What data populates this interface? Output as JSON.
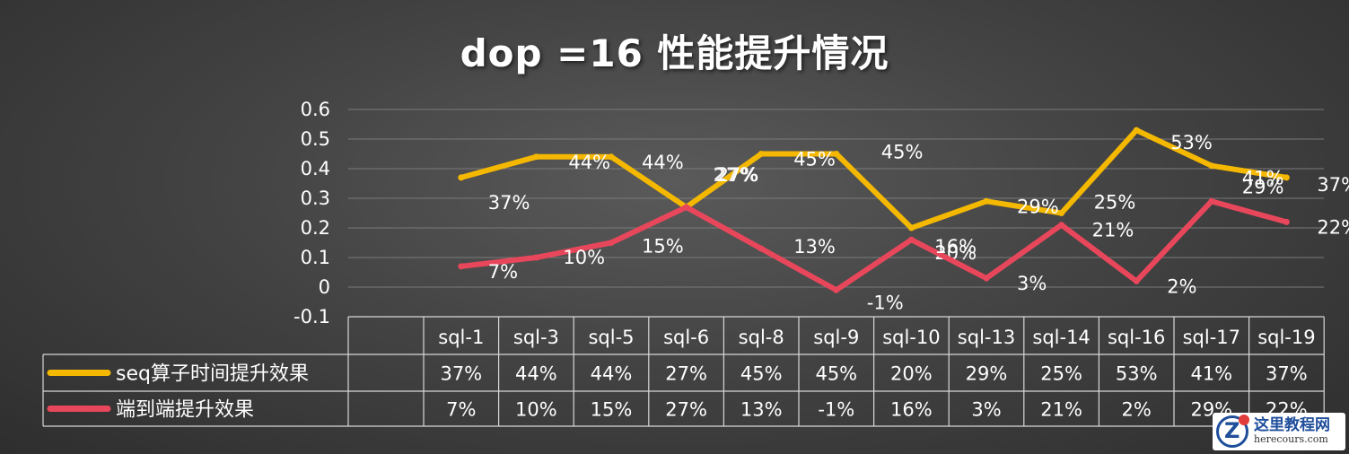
{
  "chart_data": {
    "type": "line",
    "title": "dop =16 性能提升情况",
    "categories": [
      "sql-1",
      "sql-3",
      "sql-5",
      "sql-6",
      "sql-8",
      "sql-9",
      "sql-10",
      "sql-13",
      "sql-14",
      "sql-16",
      "sql-17",
      "sql-19"
    ],
    "series": [
      {
        "name": "seq算子时间提升效果",
        "color": "#F5B800",
        "values": [
          0.37,
          0.44,
          0.44,
          0.27,
          0.45,
          0.45,
          0.2,
          0.29,
          0.25,
          0.53,
          0.41,
          0.37
        ],
        "labels": [
          "37%",
          "44%",
          "44%",
          "27%",
          "45%",
          "45%",
          "20%",
          "29%",
          "25%",
          "53%",
          "41%",
          "37%"
        ]
      },
      {
        "name": "端到端提升效果",
        "color": "#E8475B",
        "values": [
          0.07,
          0.1,
          0.15,
          0.27,
          0.13,
          -0.01,
          0.16,
          0.03,
          0.21,
          0.02,
          0.29,
          0.22
        ],
        "labels": [
          "7%",
          "10%",
          "15%",
          "27%",
          "13%",
          "-1%",
          "16%",
          "3%",
          "21%",
          "2%",
          "29%",
          "22%"
        ]
      }
    ],
    "y_ticks": [
      "0.6",
      "0.5",
      "0.4",
      "0.3",
      "0.2",
      "0.1",
      "0",
      "-0.1"
    ],
    "ylim": [
      -0.1,
      0.6
    ],
    "grid": true,
    "legend": "data-table-bottom"
  },
  "watermark": {
    "name": "这里教程网",
    "url": "herecours.com"
  }
}
